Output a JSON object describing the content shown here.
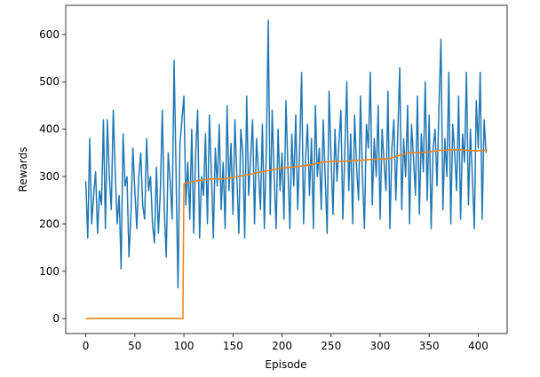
{
  "chart_data": {
    "type": "line",
    "xlabel": "Episode",
    "ylabel": "Rewards",
    "xlim": [
      -20.45,
      429.45
    ],
    "xticks": [
      0,
      50,
      100,
      150,
      200,
      250,
      300,
      350,
      400
    ],
    "ylim": [
      -31.5,
      661.5
    ],
    "yticks": [
      0,
      100,
      200,
      300,
      400,
      500,
      600
    ],
    "grid": false,
    "series": [
      {
        "color": "#1f77b4",
        "x": [
          0,
          2,
          4,
          6,
          8,
          10,
          12,
          14,
          16,
          18,
          20,
          22,
          24,
          26,
          28,
          30,
          32,
          34,
          36,
          38,
          40,
          42,
          44,
          46,
          48,
          50,
          52,
          54,
          56,
          58,
          60,
          62,
          64,
          66,
          68,
          70,
          72,
          74,
          76,
          78,
          80,
          82,
          84,
          86,
          88,
          90,
          92,
          94,
          96,
          98,
          100,
          102,
          104,
          106,
          108,
          110,
          112,
          114,
          116,
          118,
          120,
          122,
          124,
          126,
          128,
          130,
          132,
          134,
          136,
          138,
          140,
          142,
          144,
          146,
          148,
          150,
          152,
          154,
          156,
          158,
          160,
          162,
          164,
          166,
          168,
          170,
          172,
          174,
          176,
          178,
          180,
          182,
          184,
          186,
          188,
          190,
          192,
          194,
          196,
          198,
          200,
          202,
          204,
          206,
          208,
          210,
          212,
          214,
          216,
          218,
          220,
          222,
          224,
          226,
          228,
          230,
          232,
          234,
          236,
          238,
          240,
          242,
          244,
          246,
          248,
          250,
          252,
          254,
          256,
          258,
          260,
          262,
          264,
          266,
          268,
          270,
          272,
          274,
          276,
          278,
          280,
          282,
          284,
          286,
          288,
          290,
          292,
          294,
          296,
          298,
          300,
          302,
          304,
          306,
          308,
          310,
          312,
          314,
          316,
          318,
          320,
          322,
          324,
          326,
          328,
          330,
          332,
          334,
          336,
          338,
          340,
          342,
          344,
          346,
          348,
          350,
          352,
          354,
          356,
          358,
          360,
          362,
          364,
          366,
          368,
          370,
          372,
          374,
          376,
          378,
          380,
          382,
          384,
          386,
          388,
          390,
          392,
          394,
          396,
          398,
          400,
          402,
          404,
          406,
          408
        ],
        "values": [
          290,
          170,
          380,
          200,
          260,
          310,
          180,
          270,
          240,
          420,
          190,
          420,
          300,
          230,
          440,
          310,
          200,
          260,
          105,
          390,
          280,
          300,
          130,
          220,
          360,
          270,
          190,
          300,
          350,
          240,
          210,
          380,
          270,
          300,
          200,
          160,
          320,
          180,
          270,
          440,
          230,
          130,
          350,
          290,
          210,
          545,
          310,
          65,
          370,
          420,
          470,
          240,
          330,
          210,
          400,
          180,
          350,
          440,
          170,
          300,
          260,
          390,
          200,
          430,
          310,
          170,
          360,
          280,
          410,
          230,
          330,
          190,
          450,
          270,
          370,
          220,
          420,
          300,
          180,
          400,
          350,
          170,
          470,
          260,
          340,
          420,
          200,
          380,
          310,
          230,
          410,
          190,
          360,
          630,
          220,
          440,
          300,
          190,
          400,
          270,
          350,
          210,
          460,
          320,
          190,
          390,
          280,
          430,
          230,
          360,
          520,
          200,
          340,
          410,
          260,
          380,
          190,
          450,
          300,
          360,
          230,
          420,
          300,
          180,
          480,
          340,
          220,
          400,
          290,
          370,
          440,
          210,
          350,
          500,
          270,
          390,
          200,
          430,
          320,
          250,
          470,
          300,
          190,
          410,
          360,
          520,
          240,
          380,
          300,
          450,
          210,
          400,
          330,
          270,
          480,
          190,
          360,
          420,
          250,
          390,
          530,
          230,
          380,
          300,
          450,
          200,
          410,
          340,
          260,
          470,
          220,
          390,
          310,
          500,
          250,
          430,
          190,
          360,
          400,
          280,
          450,
          590,
          230,
          380,
          300,
          520,
          200,
          410,
          350,
          270,
          470,
          210,
          390,
          330,
          520,
          240,
          400,
          300,
          190,
          460,
          360,
          520,
          210,
          420,
          350
        ]
      },
      {
        "color": "#ff7f0e",
        "x": [
          0,
          98,
          99,
          100,
          110,
          120,
          130,
          140,
          150,
          160,
          170,
          180,
          190,
          200,
          210,
          220,
          230,
          240,
          250,
          260,
          270,
          280,
          290,
          300,
          310,
          320,
          330,
          340,
          350,
          360,
          370,
          380,
          390,
          400,
          409
        ],
        "values": [
          0,
          0,
          0,
          285,
          290,
          293,
          295,
          295,
          298,
          302,
          306,
          310,
          314,
          318,
          320,
          322,
          325,
          330,
          332,
          332,
          333,
          334,
          336,
          337,
          338,
          345,
          350,
          350,
          352,
          355,
          356,
          357,
          355,
          354,
          356
        ]
      }
    ]
  }
}
